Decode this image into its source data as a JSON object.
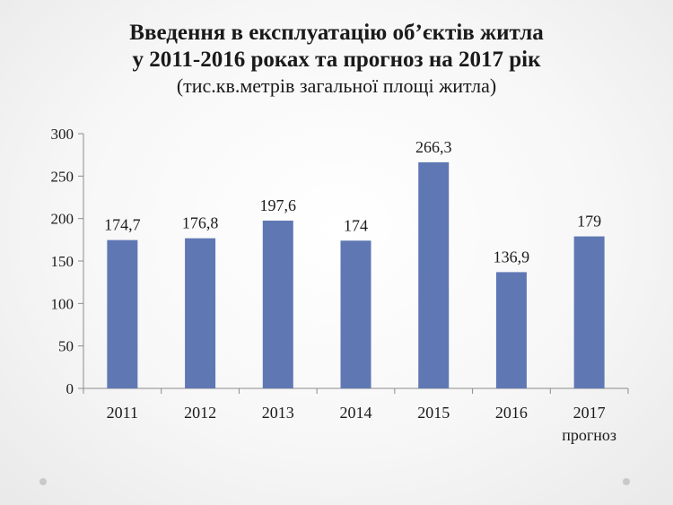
{
  "chart_data": {
    "type": "bar",
    "title": [
      "Введення в експлуатацію об’єктів житла",
      "у 2011-2016 роках та прогноз на 2017 рік"
    ],
    "subtitle": "(тис.кв.метрів загальної площі житла)",
    "categories": [
      "2011",
      "2012",
      "2013",
      "2014",
      "2015",
      "2016",
      "2017"
    ],
    "category_sublabels": [
      "",
      "",
      "",
      "",
      "",
      "",
      "прогноз"
    ],
    "values": [
      174.7,
      176.8,
      197.6,
      174,
      266.3,
      136.9,
      179
    ],
    "value_labels": [
      "174,7",
      "176,8",
      "197,6",
      "174",
      "266,3",
      "136,9",
      "179"
    ],
    "yticks": [
      "0",
      "50",
      "100",
      "150",
      "200",
      "250",
      "300"
    ],
    "ylim": [
      0,
      300
    ],
    "grid": false,
    "legend": "none",
    "colors": {
      "bar": "#5f78b4",
      "axis": "#8c8c8c",
      "text": "#1a1a1a"
    }
  }
}
